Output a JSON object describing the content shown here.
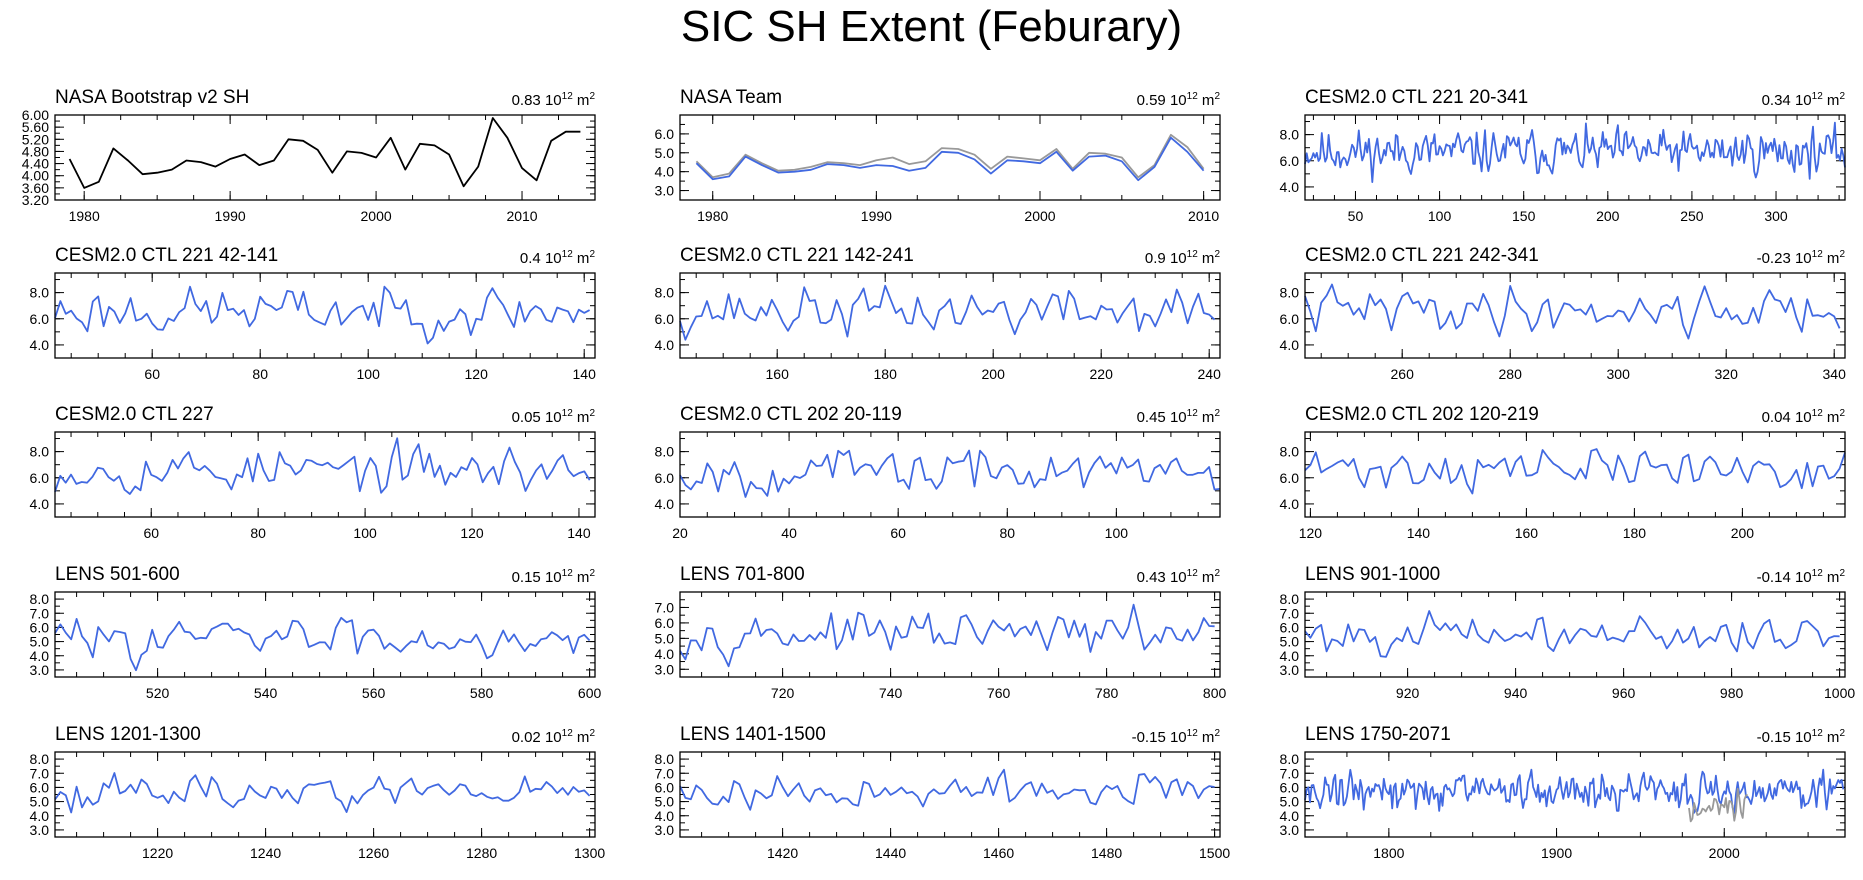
{
  "figure": {
    "title": "SIC SH Extent (Feburary)"
  },
  "chart_data": [
    {
      "type": "line",
      "title": "NASA Bootstrap v2 SH",
      "trend": "0.83",
      "unit": "10",
      "unit_exp": "12",
      "unit_tail": " m",
      "unit_tail_exp": "2",
      "xlim": [
        1978,
        2015
      ],
      "ylim": [
        3.2,
        6.0
      ],
      "xticks": [
        1980,
        1990,
        2000,
        2010
      ],
      "xtick_labels": [
        "1980",
        "1990",
        "2000",
        "2010"
      ],
      "yticks": [
        3.2,
        3.6,
        4.0,
        4.4,
        4.8,
        5.2,
        5.6,
        6.0
      ],
      "ytick_labels": [
        "3.20",
        "3.60",
        "4.00",
        "4.40",
        "4.80",
        "5.20",
        "5.60",
        "6.00"
      ],
      "series": [
        {
          "color": "#000000",
          "x_start": 1979,
          "x_step": 1,
          "values": [
            4.55,
            3.6,
            3.8,
            4.9,
            4.5,
            4.05,
            4.1,
            4.2,
            4.5,
            4.45,
            4.3,
            4.55,
            4.7,
            4.35,
            4.5,
            5.2,
            5.15,
            4.85,
            4.1,
            4.8,
            4.75,
            4.6,
            5.25,
            4.2,
            5.05,
            5.0,
            4.7,
            3.65,
            4.3,
            5.9,
            5.25,
            4.25,
            3.85,
            5.15,
            5.45,
            5.45
          ]
        }
      ]
    },
    {
      "type": "line",
      "title": "NASA Team",
      "trend": "0.59",
      "unit": "10",
      "unit_exp": "12",
      "unit_tail": " m",
      "unit_tail_exp": "2",
      "xlim": [
        1978,
        2011
      ],
      "ylim": [
        2.5,
        7.0
      ],
      "xticks": [
        1980,
        1990,
        2000,
        2010
      ],
      "xtick_labels": [
        "1980",
        "1990",
        "2000",
        "2010"
      ],
      "yticks": [
        3.0,
        4.0,
        5.0,
        6.0
      ],
      "ytick_labels": [
        "3.0",
        "4.0",
        "5.0",
        "6.0"
      ],
      "series": [
        {
          "color": "#999999",
          "x_start": 1979,
          "x_step": 1,
          "values": [
            4.55,
            3.7,
            3.9,
            4.9,
            4.45,
            4.05,
            4.1,
            4.25,
            4.5,
            4.45,
            4.35,
            4.6,
            4.75,
            4.4,
            4.55,
            5.25,
            5.2,
            4.9,
            4.15,
            4.8,
            4.7,
            4.6,
            5.2,
            4.15,
            5.0,
            4.95,
            4.75,
            3.7,
            4.35,
            5.95,
            5.3,
            4.15
          ]
        },
        {
          "color": "#4169e1",
          "x_start": 1979,
          "x_step": 1,
          "values": [
            4.45,
            3.6,
            3.75,
            4.8,
            4.35,
            3.95,
            4.0,
            4.1,
            4.4,
            4.35,
            4.2,
            4.35,
            4.3,
            4.05,
            4.2,
            5.05,
            5.0,
            4.65,
            3.9,
            4.6,
            4.55,
            4.45,
            5.05,
            4.05,
            4.8,
            4.85,
            4.55,
            3.55,
            4.25,
            5.8,
            5.05,
            4.05
          ]
        }
      ]
    },
    {
      "type": "line",
      "title": "CESM2.0 CTL 221 20-341",
      "trend": "0.34",
      "unit": "10",
      "unit_exp": "12",
      "unit_tail": " m",
      "unit_tail_exp": "2",
      "xlim": [
        20,
        341
      ],
      "ylim": [
        3.0,
        9.5
      ],
      "xticks": [
        50,
        100,
        150,
        200,
        250,
        300
      ],
      "xtick_labels": [
        "50",
        "100",
        "150",
        "200",
        "250",
        "300"
      ],
      "yticks": [
        4.0,
        6.0,
        8.0
      ],
      "ytick_labels": [
        "4.0",
        "6.0",
        "8.0"
      ],
      "series": [
        {
          "color": "#4169e1",
          "x_start": 20,
          "x_step": 1,
          "synthetic": {
            "n": 322,
            "mean": 6.7,
            "amp": 0.75,
            "seed": 11
          }
        }
      ]
    },
    {
      "type": "line",
      "title": "CESM2.0 CTL 221 42-141",
      "trend": "0.4",
      "unit": "10",
      "unit_exp": "12",
      "unit_tail": " m",
      "unit_tail_exp": "2",
      "xlim": [
        42,
        142
      ],
      "ylim": [
        3.0,
        9.5
      ],
      "xticks": [
        60,
        80,
        100,
        120,
        140
      ],
      "xtick_labels": [
        "60",
        "80",
        "100",
        "120",
        "140"
      ],
      "yticks": [
        4.0,
        6.0,
        8.0
      ],
      "ytick_labels": [
        "4.0",
        "6.0",
        "8.0"
      ],
      "series": [
        {
          "color": "#4169e1",
          "x_start": 42,
          "x_step": 1,
          "synthetic": {
            "n": 100,
            "mean": 6.6,
            "amp": 0.85,
            "seed": 23
          }
        }
      ]
    },
    {
      "type": "line",
      "title": "CESM2.0 CTL 221 142-241",
      "trend": "0.9",
      "unit": "10",
      "unit_exp": "12",
      "unit_tail": " m",
      "unit_tail_exp": "2",
      "xlim": [
        142,
        242
      ],
      "ylim": [
        3.0,
        9.5
      ],
      "xticks": [
        160,
        180,
        200,
        220,
        240
      ],
      "xtick_labels": [
        "160",
        "180",
        "200",
        "220",
        "240"
      ],
      "yticks": [
        4.0,
        6.0,
        8.0
      ],
      "ytick_labels": [
        "4.0",
        "6.0",
        "8.0"
      ],
      "series": [
        {
          "color": "#4169e1",
          "x_start": 142,
          "x_step": 1,
          "synthetic": {
            "n": 100,
            "mean": 6.6,
            "amp": 0.85,
            "seed": 37
          }
        }
      ]
    },
    {
      "type": "line",
      "title": "CESM2.0 CTL 221 242-341",
      "trend": "-0.23",
      "unit": "10",
      "unit_exp": "12",
      "unit_tail": " m",
      "unit_tail_exp": "2",
      "xlim": [
        242,
        342
      ],
      "ylim": [
        3.0,
        9.5
      ],
      "xticks": [
        260,
        280,
        300,
        320,
        340
      ],
      "xtick_labels": [
        "260",
        "280",
        "300",
        "320",
        "340"
      ],
      "yticks": [
        4.0,
        6.0,
        8.0
      ],
      "ytick_labels": [
        "4.0",
        "6.0",
        "8.0"
      ],
      "series": [
        {
          "color": "#4169e1",
          "x_start": 242,
          "x_step": 1,
          "synthetic": {
            "n": 100,
            "mean": 6.7,
            "amp": 0.8,
            "seed": 41
          }
        }
      ]
    },
    {
      "type": "line",
      "title": "CESM2.0 CTL 227",
      "trend": "0.05",
      "unit": "10",
      "unit_exp": "12",
      "unit_tail": " m",
      "unit_tail_exp": "2",
      "xlim": [
        42,
        143
      ],
      "ylim": [
        3.0,
        9.5
      ],
      "xticks": [
        60,
        80,
        100,
        120,
        140
      ],
      "xtick_labels": [
        "60",
        "80",
        "100",
        "120",
        "140"
      ],
      "yticks": [
        4.0,
        6.0,
        8.0
      ],
      "ytick_labels": [
        "4.0",
        "6.0",
        "8.0"
      ],
      "series": [
        {
          "color": "#4169e1",
          "x_start": 42,
          "x_step": 1,
          "synthetic": {
            "n": 101,
            "mean": 6.6,
            "amp": 0.8,
            "seed": 53
          }
        }
      ]
    },
    {
      "type": "line",
      "title": "CESM2.0 CTL 202 20-119",
      "trend": "0.45",
      "unit": "10",
      "unit_exp": "12",
      "unit_tail": " m",
      "unit_tail_exp": "2",
      "xlim": [
        20,
        119
      ],
      "ylim": [
        3.0,
        9.5
      ],
      "xticks": [
        20,
        40,
        60,
        80,
        100
      ],
      "xtick_labels": [
        "20",
        "40",
        "60",
        "80",
        "100"
      ],
      "yticks": [
        4.0,
        6.0,
        8.0
      ],
      "ytick_labels": [
        "4.0",
        "6.0",
        "8.0"
      ],
      "series": [
        {
          "color": "#4169e1",
          "x_start": 20,
          "x_step": 1,
          "synthetic": {
            "n": 100,
            "mean": 6.5,
            "amp": 0.8,
            "seed": 67
          }
        }
      ]
    },
    {
      "type": "line",
      "title": "CESM2.0 CTL 202 120-219",
      "trend": "0.04",
      "unit": "10",
      "unit_exp": "12",
      "unit_tail": " m",
      "unit_tail_exp": "2",
      "xlim": [
        119,
        219
      ],
      "ylim": [
        3.0,
        9.5
      ],
      "xticks": [
        120,
        140,
        160,
        180,
        200
      ],
      "xtick_labels": [
        "120",
        "140",
        "160",
        "180",
        "200"
      ],
      "yticks": [
        4.0,
        6.0,
        8.0
      ],
      "ytick_labels": [
        "4.0",
        "6.0",
        "8.0"
      ],
      "series": [
        {
          "color": "#4169e1",
          "x_start": 119,
          "x_step": 1,
          "synthetic": {
            "n": 101,
            "mean": 6.7,
            "amp": 0.75,
            "seed": 71
          }
        }
      ]
    },
    {
      "type": "line",
      "title": "LENS 501-600",
      "trend": "0.15",
      "unit": "10",
      "unit_exp": "12",
      "unit_tail": " m",
      "unit_tail_exp": "2",
      "xlim": [
        501,
        601
      ],
      "ylim": [
        2.5,
        8.5
      ],
      "xticks": [
        520,
        540,
        560,
        580,
        600
      ],
      "xtick_labels": [
        "520",
        "540",
        "560",
        "580",
        "600"
      ],
      "yticks": [
        3.0,
        4.0,
        5.0,
        6.0,
        7.0,
        8.0
      ],
      "ytick_labels": [
        "3.0",
        "4.0",
        "5.0",
        "6.0",
        "7.0",
        "8.0"
      ],
      "series": [
        {
          "color": "#4169e1",
          "x_start": 501,
          "x_step": 1,
          "synthetic": {
            "n": 100,
            "mean": 5.3,
            "amp": 0.65,
            "seed": 83
          }
        }
      ]
    },
    {
      "type": "line",
      "title": "LENS 701-800",
      "trend": "0.43",
      "unit": "10",
      "unit_exp": "12",
      "unit_tail": " m",
      "unit_tail_exp": "2",
      "xlim": [
        701,
        801
      ],
      "ylim": [
        2.5,
        8.0
      ],
      "xticks": [
        720,
        740,
        760,
        780,
        800
      ],
      "xtick_labels": [
        "720",
        "740",
        "760",
        "780",
        "800"
      ],
      "yticks": [
        3.0,
        4.0,
        5.0,
        6.0,
        7.0
      ],
      "ytick_labels": [
        "3.0",
        "4.0",
        "5.0",
        "6.0",
        "7.0"
      ],
      "series": [
        {
          "color": "#4169e1",
          "x_start": 701,
          "x_step": 1,
          "synthetic": {
            "n": 100,
            "mean": 5.3,
            "amp": 0.6,
            "seed": 97
          }
        }
      ]
    },
    {
      "type": "line",
      "title": "LENS 901-1000",
      "trend": "-0.14",
      "unit": "10",
      "unit_exp": "12",
      "unit_tail": " m",
      "unit_tail_exp": "2",
      "xlim": [
        901,
        1001
      ],
      "ylim": [
        2.5,
        8.5
      ],
      "xticks": [
        920,
        940,
        960,
        980,
        1000
      ],
      "xtick_labels": [
        "920",
        "940",
        "960",
        "980",
        "1000"
      ],
      "yticks": [
        3.0,
        4.0,
        5.0,
        6.0,
        7.0,
        8.0
      ],
      "ytick_labels": [
        "3.0",
        "4.0",
        "5.0",
        "6.0",
        "7.0",
        "8.0"
      ],
      "series": [
        {
          "color": "#4169e1",
          "x_start": 901,
          "x_step": 1,
          "synthetic": {
            "n": 100,
            "mean": 5.5,
            "amp": 0.6,
            "seed": 101
          }
        }
      ]
    },
    {
      "type": "line",
      "title": "LENS 1201-1300",
      "trend": "0.02",
      "unit": "10",
      "unit_exp": "12",
      "unit_tail": " m",
      "unit_tail_exp": "2",
      "xlim": [
        1201,
        1301
      ],
      "ylim": [
        2.5,
        8.5
      ],
      "xticks": [
        1220,
        1240,
        1260,
        1280,
        1300
      ],
      "xtick_labels": [
        "1220",
        "1240",
        "1260",
        "1280",
        "1300"
      ],
      "yticks": [
        3.0,
        4.0,
        5.0,
        6.0,
        7.0,
        8.0
      ],
      "ytick_labels": [
        "3.0",
        "4.0",
        "5.0",
        "6.0",
        "7.0",
        "8.0"
      ],
      "series": [
        {
          "color": "#4169e1",
          "x_start": 1201,
          "x_step": 1,
          "synthetic": {
            "n": 100,
            "mean": 5.7,
            "amp": 0.55,
            "seed": 113
          }
        }
      ]
    },
    {
      "type": "line",
      "title": "LENS 1401-1500",
      "trend": "-0.15",
      "unit": "10",
      "unit_exp": "12",
      "unit_tail": " m",
      "unit_tail_exp": "2",
      "xlim": [
        1401,
        1501
      ],
      "ylim": [
        2.5,
        8.5
      ],
      "xticks": [
        1420,
        1440,
        1460,
        1480,
        1500
      ],
      "xtick_labels": [
        "1420",
        "1440",
        "1460",
        "1480",
        "1500"
      ],
      "yticks": [
        3.0,
        4.0,
        5.0,
        6.0,
        7.0,
        8.0
      ],
      "ytick_labels": [
        "3.0",
        "4.0",
        "5.0",
        "6.0",
        "7.0",
        "8.0"
      ],
      "series": [
        {
          "color": "#4169e1",
          "x_start": 1401,
          "x_step": 1,
          "synthetic": {
            "n": 100,
            "mean": 5.7,
            "amp": 0.55,
            "seed": 127
          }
        }
      ]
    },
    {
      "type": "line",
      "title": "LENS 1750-2071",
      "trend": "-0.15",
      "unit": "10",
      "unit_exp": "12",
      "unit_tail": " m",
      "unit_tail_exp": "2",
      "xlim": [
        1750,
        2072
      ],
      "ylim": [
        2.5,
        8.5
      ],
      "xticks": [
        1800,
        1900,
        2000
      ],
      "xtick_labels": [
        "1800",
        "1900",
        "2000"
      ],
      "yticks": [
        3.0,
        4.0,
        5.0,
        6.0,
        7.0,
        8.0
      ],
      "ytick_labels": [
        "3.0",
        "4.0",
        "5.0",
        "6.0",
        "7.0",
        "8.0"
      ],
      "series": [
        {
          "color": "#4169e1",
          "x_start": 1750,
          "x_step": 1,
          "synthetic": {
            "n": 322,
            "mean": 5.75,
            "amp": 0.6,
            "seed": 131
          }
        },
        {
          "color": "#999999",
          "x_start": 1979,
          "x_step": 1,
          "values": [
            4.55,
            3.6,
            3.8,
            4.9,
            4.5,
            4.05,
            4.1,
            4.2,
            4.5,
            4.45,
            4.3,
            4.55,
            4.7,
            4.35,
            4.5,
            5.2,
            5.15,
            4.85,
            4.1,
            4.8,
            4.75,
            4.6,
            5.25,
            4.2,
            5.05,
            5.0,
            4.7,
            3.65,
            4.3,
            5.9,
            5.25,
            4.25,
            3.85,
            5.15,
            5.45,
            5.45
          ]
        }
      ]
    }
  ]
}
